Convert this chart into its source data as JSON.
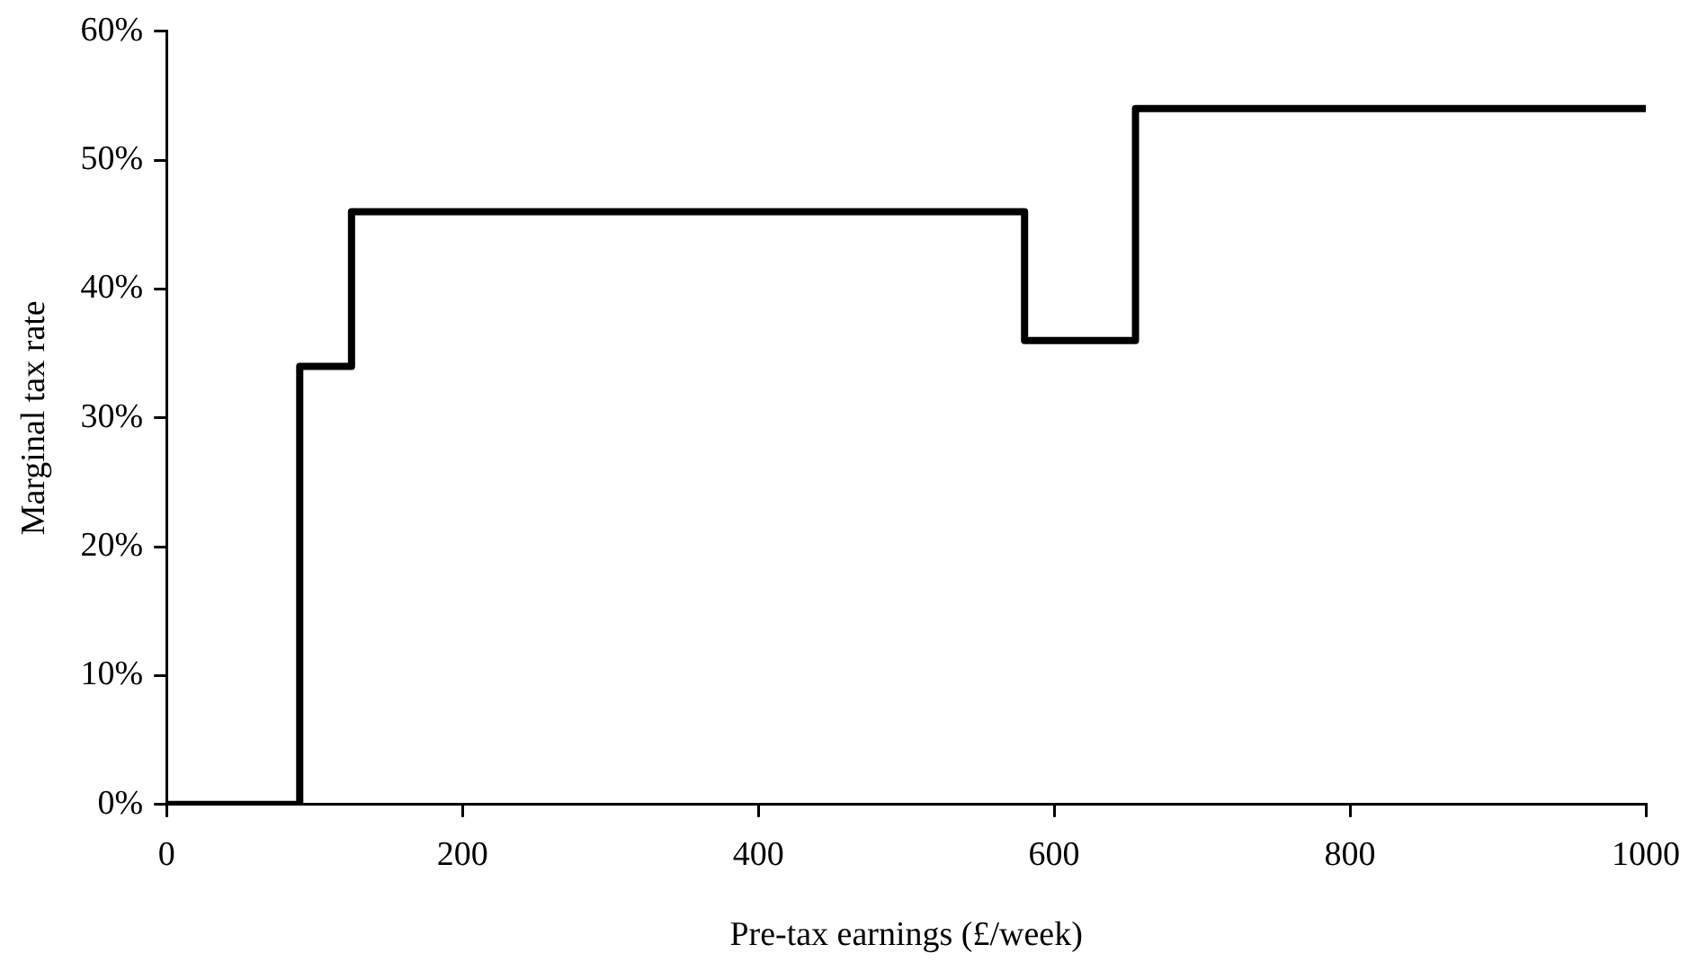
{
  "chart_data": {
    "type": "step",
    "xlabel": "Pre-tax earnings (£/week)",
    "ylabel": "Marginal tax rate",
    "x": [
      0,
      90,
      125,
      580,
      655,
      1000
    ],
    "series": [
      {
        "color": "#000000",
        "values": [
          0,
          34,
          46,
          36,
          54,
          54
        ]
      }
    ],
    "xlim": [
      0,
      1000
    ],
    "xticks": [
      0,
      200,
      400,
      600,
      800,
      1000
    ],
    "ylim": [
      0,
      60
    ],
    "yticks": [
      {
        "value": 0,
        "label": "0%"
      },
      {
        "value": 10,
        "label": "10%"
      },
      {
        "value": 20,
        "label": "20%"
      },
      {
        "value": 30,
        "label": "30%"
      },
      {
        "value": 40,
        "label": "40%"
      },
      {
        "value": 50,
        "label": "50%"
      },
      {
        "value": 60,
        "label": "60%"
      }
    ],
    "grid": false,
    "legend": false,
    "marker": "none",
    "line_style": "solid"
  }
}
